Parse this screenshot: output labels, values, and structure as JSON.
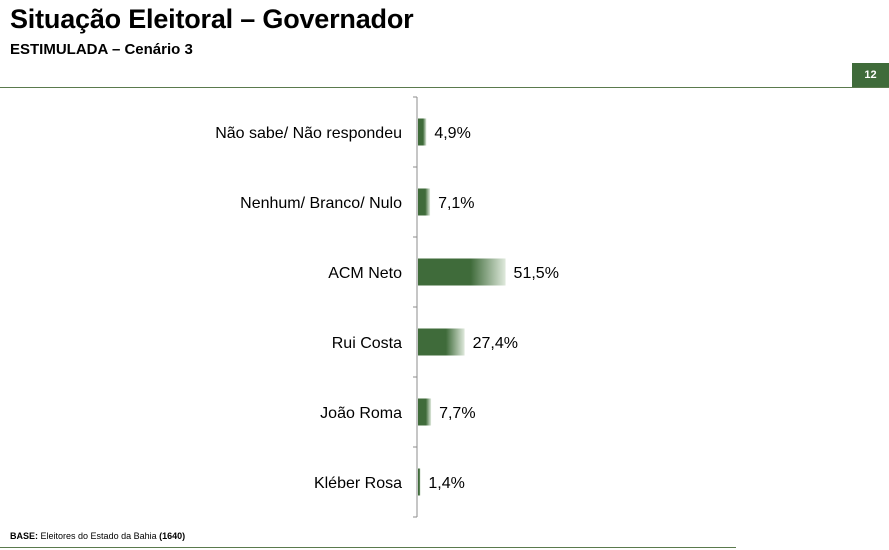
{
  "header": {
    "title": "Situação Eleitoral – Governador",
    "subtitle": "ESTIMULADA – Cenário 3",
    "page_number": "12"
  },
  "footer": {
    "base_label": "BASE:",
    "base_text": "Eleitores do Estado da Bahia",
    "base_count": "(1640)"
  },
  "colors": {
    "bar_dark": "#3f6b3a",
    "bar_light": "#dfe9dc",
    "accent": "#3f6b3a"
  },
  "chart_data": {
    "type": "bar",
    "orientation": "horizontal",
    "categories": [
      "Não sabe/ Não respondeu",
      "Nenhum/ Branco/ Nulo",
      "ACM Neto",
      "Rui Costa",
      "João Roma",
      "Kléber Rosa"
    ],
    "values": [
      4.9,
      7.1,
      51.5,
      27.4,
      7.7,
      1.4
    ],
    "value_labels": [
      "4,9%",
      "7,1%",
      "51,5%",
      "27,4%",
      "7,7%",
      "1,4%"
    ],
    "unit": "%",
    "xlim": [
      0,
      100
    ],
    "grid": false,
    "legend": "none"
  }
}
